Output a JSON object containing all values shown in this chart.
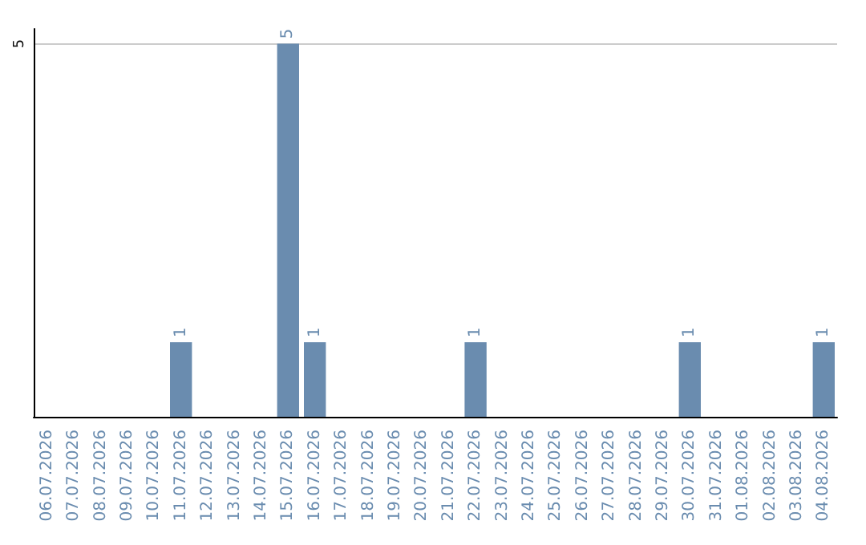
{
  "chart_data": {
    "type": "bar",
    "categories": [
      "06.07.2026",
      "07.07.2026",
      "08.07.2026",
      "09.07.2026",
      "10.07.2026",
      "11.07.2026",
      "12.07.2026",
      "13.07.2026",
      "14.07.2026",
      "15.07.2026",
      "16.07.2026",
      "17.07.2026",
      "18.07.2026",
      "19.07.2026",
      "20.07.2026",
      "21.07.2026",
      "22.07.2026",
      "23.07.2026",
      "24.07.2026",
      "25.07.2026",
      "26.07.2026",
      "27.07.2026",
      "28.07.2026",
      "29.07.2026",
      "30.07.2026",
      "31.07.2026",
      "01.08.2026",
      "02.08.2026",
      "03.08.2026",
      "04.08.2026"
    ],
    "values": [
      0,
      0,
      0,
      0,
      0,
      1,
      0,
      0,
      0,
      5,
      1,
      0,
      0,
      0,
      0,
      0,
      1,
      0,
      0,
      0,
      0,
      0,
      0,
      0,
      1,
      0,
      0,
      0,
      0,
      1
    ],
    "value_labels": [
      null,
      null,
      null,
      null,
      null,
      "1",
      null,
      null,
      null,
      "5",
      "1",
      null,
      null,
      null,
      null,
      null,
      "1",
      null,
      null,
      null,
      null,
      null,
      null,
      null,
      "1",
      null,
      null,
      null,
      null,
      "1"
    ],
    "color": "#6a8caf",
    "ylim": [
      0,
      5.2
    ],
    "yticks": [
      5
    ],
    "grid": "y"
  }
}
